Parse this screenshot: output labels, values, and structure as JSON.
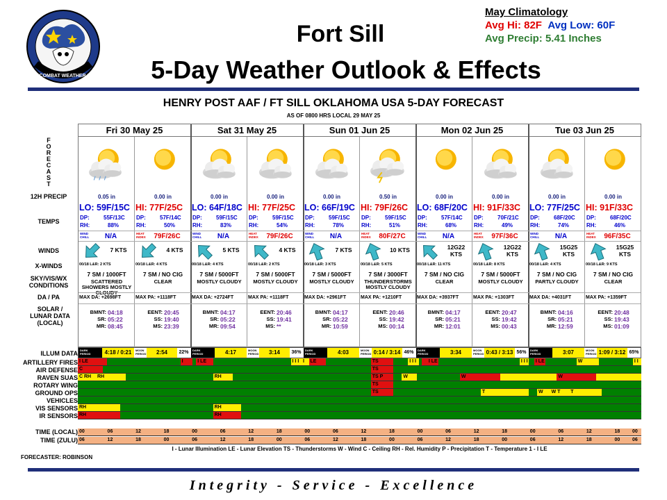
{
  "header": {
    "title_line1": "Fort Sill",
    "title_line2": "5-Day Weather Outlook & Effects",
    "logo_text": "3d COMBAT WEATHER SQ"
  },
  "climatology": {
    "title": "May Climatology",
    "avg_hi": "Avg Hi: 82F",
    "avg_low": "Avg Low: 60F",
    "avg_precip": "Avg Precip: 5.41 Inches"
  },
  "forecast": {
    "title": "HENRY POST AAF / FT SILL OKLAHOMA USA 5-DAY FORECAST",
    "as_of": "AS OF 0800 HRS LOCAL 29 MAY 25",
    "row_labels": {
      "forecast_vertical": "FORECAST",
      "precip": "12H PRECIP",
      "temps": "TEMPS",
      "winds": "WINDS",
      "xwinds": "X-WINDS",
      "skyvis": "SKY/VIS/WX CONDITIONS",
      "dapa": "DA / PA",
      "solar": "SOLAR / LUNAR DATA (LOCAL)"
    },
    "days": [
      {
        "header": "Fri 30 May 25",
        "halves": [
          {
            "icon": "partly-cloudy-rain-icon",
            "precip": "0.05 in",
            "temp": "LO: 59F/15C",
            "temp_color": "#0000cc",
            "dp": "55F/13C",
            "rh": "88%",
            "chill_label": "WIND CHILL",
            "chill": "N/A",
            "wind_dir": "sw-arrow",
            "wind": "7 KTS",
            "xwind": "00/18 L&R: 2 KTS",
            "sky": "7 SM / 1000FT",
            "cond": "SCATTERED SHOWERS MOSTLY CLOUDY",
            "dapa": "MAX DA: +2698FT",
            "sun_a_lbl": "BMNT:",
            "sun_a": "04:18",
            "sun_b_lbl": "SR:",
            "sun_b": "05:22",
            "sun_c_lbl": "MR:",
            "sun_c": "08:45"
          },
          {
            "icon": "sun-icon",
            "precip": "0.00 in",
            "temp": "HI: 77F/25C",
            "temp_color": "#e00000",
            "dp": "57F/14C",
            "rh": "50%",
            "chill_label": "HEAT INDEX",
            "chill": "79F/26C",
            "wind_dir": "sw-arrow",
            "wind": "4 KTS",
            "xwind": "00/18 L&R: 4 KTS",
            "sky": "7 SM / NO CIG",
            "cond": "CLEAR",
            "dapa": "MAX PA: +1118FT",
            "sun_a_lbl": "EENT:",
            "sun_a": "20:45",
            "sun_b_lbl": "SS:",
            "sun_b": "19:40",
            "sun_c_lbl": "MS:",
            "sun_c": "23:39"
          }
        ]
      },
      {
        "header": "Sat 31 May 25",
        "halves": [
          {
            "icon": "partly-cloudy-icon",
            "precip": "0.00 in",
            "temp": "LO: 64F/18C",
            "temp_color": "#0000cc",
            "dp": "59F/15C",
            "rh": "83%",
            "chill_label": "WIND CHILL",
            "chill": "N/A",
            "wind_dir": "nw-arrow",
            "wind": "5 KTS",
            "xwind": "00/18 L&R: 4 KTS",
            "sky": "7 SM / 5000FT",
            "cond": "MOSTLY CLOUDY",
            "dapa": "MAX DA: +2724FT",
            "sun_a_lbl": "BMNT:",
            "sun_a": "04:17",
            "sun_b_lbl": "SR:",
            "sun_b": "05:22",
            "sun_c_lbl": "MR:",
            "sun_c": "09:54"
          },
          {
            "icon": "partly-cloudy-icon",
            "precip": "0.00 in",
            "temp": "HI: 77F/25C",
            "temp_color": "#e00000",
            "dp": "59F/15C",
            "rh": "54%",
            "chill_label": "HEAT INDEX",
            "chill": "79F/26C",
            "wind_dir": "nw-arrow",
            "wind": "4 KTS",
            "xwind": "00/18 L&R: 2 KTS",
            "sky": "7 SM / 5000FT",
            "cond": "MOSTLY CLOUDY",
            "dapa": "MAX PA: +1118FT",
            "sun_a_lbl": "EENT:",
            "sun_a": "20:46",
            "sun_b_lbl": "SS:",
            "sun_b": "19:41",
            "sun_c_lbl": "MS:",
            "sun_c": "**"
          }
        ]
      },
      {
        "header": "Sun 01 Jun 25",
        "halves": [
          {
            "icon": "partly-cloudy-icon",
            "precip": "0.00 in",
            "temp": "LO: 66F/19C",
            "temp_color": "#0000cc",
            "dp": "59F/15C",
            "rh": "78%",
            "chill_label": "WIND CHILL",
            "chill": "N/A",
            "wind_dir": "n-arrow",
            "wind": "7 KTS",
            "xwind": "00/18 L&R: 3 KTS",
            "sky": "7 SM / 5000FT",
            "cond": "MOSTLY CLOUDY",
            "dapa": "MAX DA: +2961FT",
            "sun_a_lbl": "BMNT:",
            "sun_a": "04:17",
            "sun_b_lbl": "SR:",
            "sun_b": "05:22",
            "sun_c_lbl": "MR:",
            "sun_c": "10:59"
          },
          {
            "icon": "thunderstorm-icon",
            "precip": "0.50 in",
            "temp": "HI: 79F/26C",
            "temp_color": "#e00000",
            "dp": "59F/15C",
            "rh": "51%",
            "chill_label": "HEAT INDEX",
            "chill": "80F/27C",
            "wind_dir": "n-arrow",
            "wind": "10 KTS",
            "xwind": "00/18 L&R: 5 KTS",
            "sky": "7 SM / 3000FT",
            "cond": "THUNDERSTORMS MOSTLY CLOUDY",
            "dapa": "MAX PA: +1210FT",
            "sun_a_lbl": "EENT:",
            "sun_a": "20:46",
            "sun_b_lbl": "SS:",
            "sun_b": "19:42",
            "sun_c_lbl": "MS:",
            "sun_c": "00:14"
          }
        ]
      },
      {
        "header": "Mon 02 Jun 25",
        "halves": [
          {
            "icon": "sun-icon",
            "precip": "0.00 in",
            "temp": "LO: 68F/20C",
            "temp_color": "#0000cc",
            "dp": "57F/14C",
            "rh": "68%",
            "chill_label": "WIND CHILL",
            "chill": "N/A",
            "wind_dir": "nw-arrow",
            "wind": "12G22 KTS",
            "xwind": "00/18 L&R: 11 KTS",
            "sky": "7 SM / NO CIG",
            "cond": "CLEAR",
            "dapa": "MAX DA: +3937FT",
            "sun_a_lbl": "BMNT:",
            "sun_a": "04:17",
            "sun_b_lbl": "SR:",
            "sun_b": "05:21",
            "sun_c_lbl": "MR:",
            "sun_c": "12:01"
          },
          {
            "icon": "partly-cloudy-icon",
            "precip": "0.00 in",
            "temp": "HI: 91F/33C",
            "temp_color": "#e00000",
            "dp": "70F/21C",
            "rh": "49%",
            "chill_label": "HEAT INDEX",
            "chill": "97F/36C",
            "wind_dir": "n-arrow",
            "wind": "12G22 KTS",
            "xwind": "00/18 L&R: 8 KTS",
            "sky": "7 SM / 5000FT",
            "cond": "MOSTLY CLOUDY",
            "dapa": "MAX PA: +1303FT",
            "sun_a_lbl": "EENT:",
            "sun_a": "20:47",
            "sun_b_lbl": "SS:",
            "sun_b": "19:42",
            "sun_c_lbl": "MS:",
            "sun_c": "00:43"
          }
        ]
      },
      {
        "header": "Tue 03 Jun 25",
        "halves": [
          {
            "icon": "partly-cloudy-icon",
            "precip": "0.00 in",
            "temp": "LO: 77F/25C",
            "temp_color": "#0000cc",
            "dp": "68F/20C",
            "rh": "74%",
            "chill_label": "WIND CHILL",
            "chill": "N/A",
            "wind_dir": "n-arrow",
            "wind": "15G25 KTS",
            "xwind": "00/18 L&R: 4 KTS",
            "sky": "7 SM / NO CIG",
            "cond": "PARTLY CLOUDY",
            "dapa": "MAX DA: +4031FT",
            "sun_a_lbl": "BMNT:",
            "sun_a": "04:16",
            "sun_b_lbl": "SR:",
            "sun_b": "05:21",
            "sun_c_lbl": "MR:",
            "sun_c": "12:59"
          },
          {
            "icon": "sun-icon",
            "precip": "0.00 in",
            "temp": "HI: 91F/33C",
            "temp_color": "#e00000",
            "dp": "68F/20C",
            "rh": "46%",
            "chill_label": "HEAT INDEX",
            "chill": "96F/35C",
            "wind_dir": "n-arrow",
            "wind": "15G25 KTS",
            "xwind": "00/18 L&R: 9 KTS",
            "sky": "7 SM / NO CIG",
            "cond": "CLEAR",
            "dapa": "MAX PA: +1359FT",
            "sun_a_lbl": "EENT:",
            "sun_a": "20:48",
            "sun_b_lbl": "SS:",
            "sun_b": "19:43",
            "sun_c_lbl": "MS:",
            "sun_c": "01:09"
          }
        ]
      }
    ]
  },
  "illum": {
    "label": "ILLUM DATA",
    "dark_label": "DARK PERIOD",
    "moon_label": "MOON PERIOD",
    "days": [
      {
        "dark": "4:18 / 0:21",
        "moon": "2:54",
        "pct": "22%"
      },
      {
        "dark": "4:17",
        "moon": "3:14",
        "pct": "36%"
      },
      {
        "dark": "4:03",
        "moon": "0:14 / 3:14",
        "pct": "46%"
      },
      {
        "dark": "3:34",
        "moon": "0:43 / 3:13",
        "pct": "56%"
      },
      {
        "dark": "3:07",
        "moon": "1:09 / 3:12",
        "pct": "65%"
      }
    ]
  },
  "effects": {
    "rows": [
      {
        "label": "ARTILLERY FIRES",
        "segs": [
          [
            0.0,
            0.052,
            "r",
            "I LE"
          ],
          [
            0.182,
            0.203,
            "r",
            "I"
          ],
          [
            0.21,
            0.24,
            "r",
            "I LE"
          ],
          [
            0.378,
            0.397,
            "y",
            "I I I"
          ],
          [
            0.397,
            0.42,
            "y",
            "I"
          ],
          [
            0.41,
            0.44,
            "r",
            "LE"
          ],
          [
            0.52,
            0.56,
            "r",
            "TS"
          ],
          [
            0.586,
            0.605,
            "y",
            "I I I"
          ],
          [
            0.61,
            0.62,
            "r",
            ""
          ],
          [
            0.62,
            0.64,
            "r",
            "I LE"
          ],
          [
            0.784,
            0.8,
            "y",
            "I I I"
          ],
          [
            0.81,
            0.83,
            "r",
            "I LE"
          ],
          [
            0.885,
            0.925,
            "y",
            "W"
          ],
          [
            0.985,
            1.0,
            "y",
            "I I"
          ]
        ]
      },
      {
        "label": "AIR DEFENSE",
        "segs": [
          [
            0.0,
            0.045,
            "r",
            "C"
          ],
          [
            0.52,
            0.56,
            "r",
            "TS"
          ]
        ]
      },
      {
        "label": "RAVEN SUAS",
        "segs": [
          [
            0.0,
            0.032,
            "y",
            "C RH"
          ],
          [
            0.032,
            0.085,
            "y",
            "RH"
          ],
          [
            0.24,
            0.275,
            "y",
            "RH"
          ],
          [
            0.52,
            0.56,
            "r",
            "TS P"
          ],
          [
            0.575,
            0.602,
            "y",
            "W"
          ],
          [
            0.678,
            0.75,
            "r",
            "W"
          ],
          [
            0.75,
            0.85,
            "y",
            ""
          ],
          [
            0.85,
            0.92,
            "r",
            "W"
          ],
          [
            0.92,
            1.0,
            "y",
            ""
          ]
        ]
      },
      {
        "label": "ROTARY WING",
        "segs": [
          [
            0.52,
            0.56,
            "r",
            "TS"
          ]
        ]
      },
      {
        "label": "GROUND OPS",
        "segs": [
          [
            0.52,
            0.56,
            "r",
            "TS"
          ],
          [
            0.715,
            0.8,
            "y",
            "T"
          ],
          [
            0.815,
            0.838,
            "y",
            "W"
          ],
          [
            0.838,
            0.872,
            "y",
            "W T"
          ],
          [
            0.872,
            0.93,
            "y",
            "T"
          ]
        ]
      },
      {
        "label": "VEHICLES",
        "segs": []
      },
      {
        "label": "VIS SENSORS",
        "segs": [
          [
            0.0,
            0.075,
            "y",
            "RH"
          ],
          [
            0.24,
            0.29,
            "y",
            "RH"
          ]
        ]
      },
      {
        "label": "IR SENSORS",
        "segs": [
          [
            0.0,
            0.075,
            "r",
            "RH"
          ],
          [
            0.24,
            0.29,
            "r",
            "RH"
          ]
        ]
      }
    ],
    "time_local_label": "TIME (LOCAL)",
    "time_zulu_label": "TIME (ZULU)",
    "time_local": [
      "00",
      "06",
      "12",
      "18",
      "00",
      "06",
      "12",
      "18",
      "00",
      "06",
      "12",
      "18",
      "00",
      "06",
      "12",
      "18",
      "00",
      "06",
      "12",
      "18",
      "00"
    ],
    "time_zulu": [
      "06",
      "12",
      "18",
      "00",
      "06",
      "12",
      "18",
      "00",
      "06",
      "12",
      "18",
      "00",
      "06",
      "12",
      "18",
      "00",
      "06",
      "12",
      "18",
      "00",
      "06"
    ]
  },
  "legend": "I - Lunar Illumination    LE - Lunar Elevation    TS - Thunderstorms    W - Wind    C - Ceiling    RH - Rel. Humidity    P - Precipitation    T - Temperature    1 - I LE",
  "forecaster": "FORECASTER: ROBINSON",
  "motto": "Integrity - Service - Excellence",
  "colors": {
    "bar": "#1f2f7a",
    "green": "#008000",
    "red": "#e01010",
    "yellow": "#ffee00",
    "time": "#f4b183"
  }
}
